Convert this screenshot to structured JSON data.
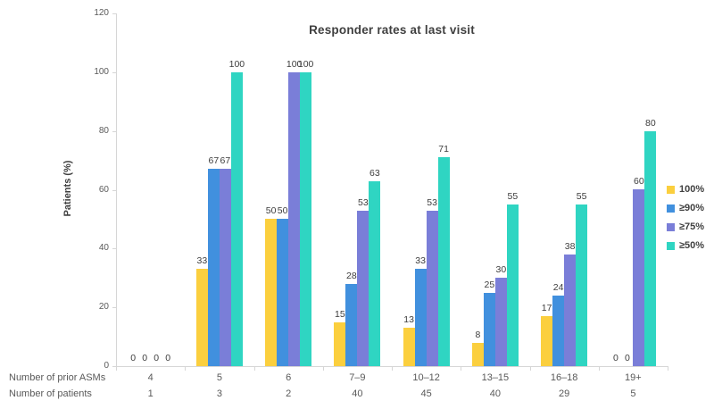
{
  "chart_data": {
    "type": "bar",
    "title": "Responder rates at last visit",
    "ylabel": "Patients (%)",
    "xlabel": "",
    "ylim": [
      0,
      120
    ],
    "yticks": [
      0,
      20,
      40,
      60,
      80,
      100,
      120
    ],
    "grid": false,
    "legend_position": "right",
    "categories": [
      "4",
      "5",
      "6",
      "7–9",
      "10–12",
      "13–15",
      "16–18",
      "19+"
    ],
    "series": [
      {
        "name": "100%",
        "color": "#fbcf3e",
        "values": [
          0,
          33,
          50,
          15,
          13,
          8,
          17,
          0
        ]
      },
      {
        "name": "≥90%",
        "color": "#4190de",
        "values": [
          0,
          67,
          50,
          28,
          33,
          25,
          24,
          0
        ]
      },
      {
        "name": "≥75%",
        "color": "#7a7ed8",
        "values": [
          0,
          67,
          100,
          53,
          53,
          30,
          38,
          60
        ]
      },
      {
        "name": "≥50%",
        "color": "#2fd5c2",
        "values": [
          0,
          100,
          100,
          63,
          71,
          55,
          55,
          80
        ]
      }
    ],
    "x_axis_rows": [
      {
        "label": "Number of prior ASMs",
        "values": [
          "4",
          "5",
          "6",
          "7–9",
          "10–12",
          "13–15",
          "16–18",
          "19+"
        ]
      },
      {
        "label": "Number of patients",
        "values": [
          "1",
          "3",
          "2",
          "40",
          "45",
          "40",
          "29",
          "5"
        ]
      }
    ],
    "colors": {
      "axis_line": "#d6d6d6",
      "tick_text": "#595959",
      "data_label_text": "#3d3d3d",
      "title_text": "#404040"
    }
  }
}
